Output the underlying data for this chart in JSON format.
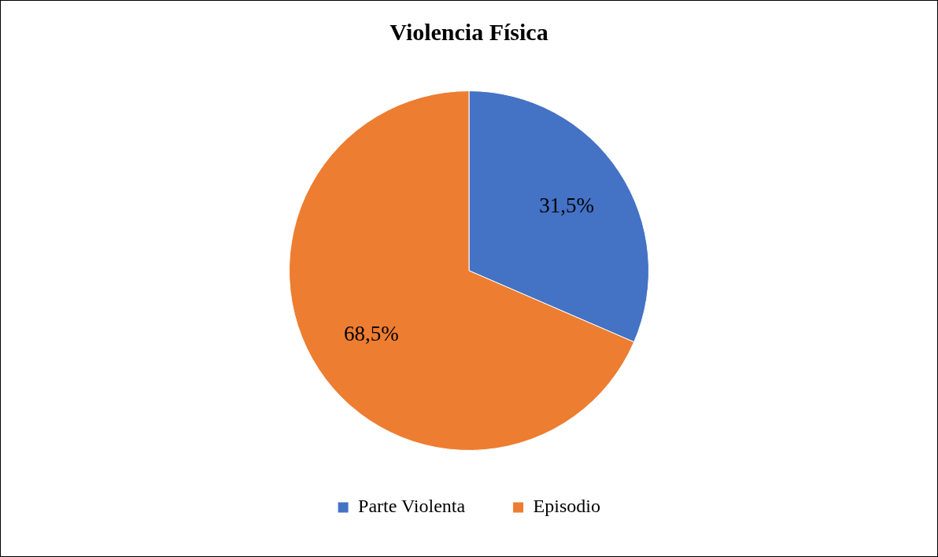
{
  "chart_data": {
    "type": "pie",
    "title": "Violencia Física",
    "categories": [
      "Parte Violenta",
      "Episodio"
    ],
    "values": [
      31.5,
      68.5
    ],
    "colors": [
      "#4472c4",
      "#ed7d31"
    ],
    "value_labels": [
      "31,5%",
      "68,5%"
    ],
    "legend": "bottom"
  }
}
